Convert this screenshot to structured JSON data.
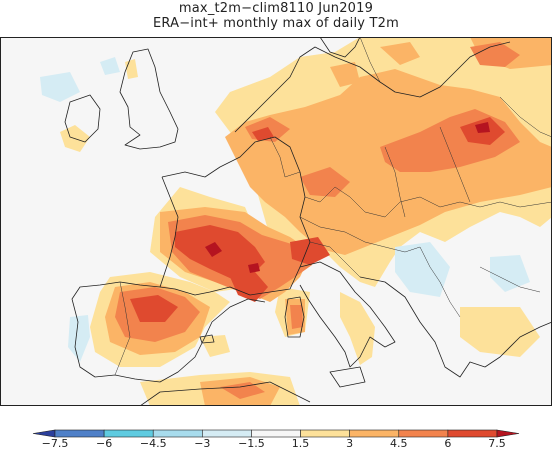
{
  "header": {
    "title_line1": "max_t2m−clim8110 Jun2019",
    "title_line2": "ERA−int+ monthly max of daily T2m"
  },
  "colorbar": {
    "tick_labels": [
      "−7.5",
      "−6",
      "−4.5",
      "−3",
      "−1.5",
      "1.5",
      "3",
      "4.5",
      "6",
      "7.5"
    ],
    "colors": [
      "#2b3f9c",
      "#4f80c8",
      "#5fcbe0",
      "#a8dced",
      "#d5ecf4",
      "#f6f6f6",
      "#fde19a",
      "#fbb466",
      "#f2834d",
      "#df4a2f",
      "#b51420"
    ]
  },
  "map": {
    "region": "Europe",
    "background_color": "#f6f6f6",
    "anomaly_colors": {
      "light_warm": "#fde19a",
      "warm": "#fbb466",
      "hot": "#f2834d",
      "very_hot": "#df4a2f",
      "extreme": "#b51420",
      "cool": "#d5ecf4"
    }
  }
}
